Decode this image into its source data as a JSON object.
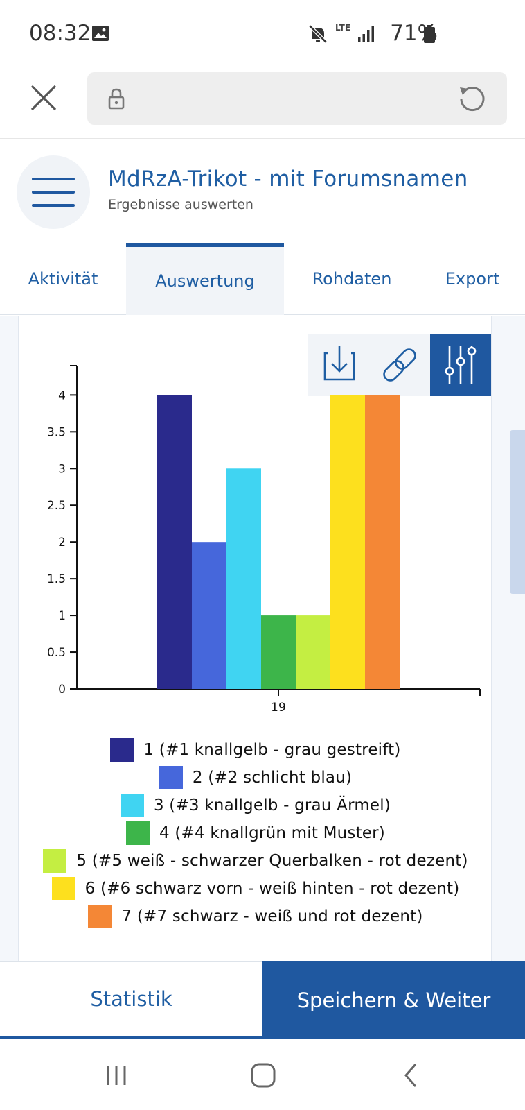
{
  "status": {
    "time": "08:32",
    "network": "LTE",
    "battery": "71%"
  },
  "header": {
    "title": "MdRzA-Trikot - mit Forumsnamen",
    "subtitle": "Ergebnisse auswerten"
  },
  "tabs": [
    {
      "label": "Aktivität"
    },
    {
      "label": "Auswertung",
      "active": true
    },
    {
      "label": "Rohdaten"
    },
    {
      "label": "Export"
    }
  ],
  "actions": {
    "statistics_label": "Statistik",
    "save_label": "Speichern & Weiter"
  },
  "colors": {
    "accent": "#1f58a0",
    "text_link": "#1f5ea3"
  },
  "chart_data": {
    "type": "bar",
    "categories": [
      "19"
    ],
    "ylim": [
      0,
      4.4
    ],
    "yticks": [
      "0",
      "0.5",
      "1",
      "1.5",
      "2",
      "2.5",
      "3",
      "3.5",
      "4"
    ],
    "series": [
      {
        "name": "1 (#1 knallgelb - grau gestreift)",
        "values": [
          4
        ],
        "color": "#2a2a8c"
      },
      {
        "name": "2 (#2 schlicht blau)",
        "values": [
          2
        ],
        "color": "#4667db"
      },
      {
        "name": "3 (#3 knallgelb - grau Ärmel)",
        "values": [
          3
        ],
        "color": "#40d4f2"
      },
      {
        "name": "4 (#4 knallgrün mit Muster)",
        "values": [
          1
        ],
        "color": "#3db54a"
      },
      {
        "name": "5 (#5 weiß - schwarzer Querbalken - rot dezent)",
        "values": [
          1
        ],
        "color": "#c4ee42"
      },
      {
        "name": "6 (#6 schwarz vorn - weiß hinten - rot dezent)",
        "values": [
          4
        ],
        "color": "#fde01e"
      },
      {
        "name": "7 (#7 schwarz - weiß und rot dezent)",
        "values": [
          4
        ],
        "color": "#f48736"
      }
    ],
    "legend_position": "bottom",
    "grid": false
  }
}
